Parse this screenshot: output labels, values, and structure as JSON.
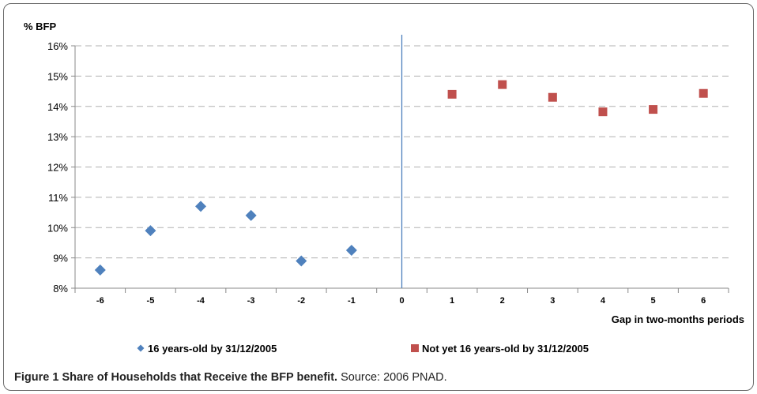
{
  "caption": {
    "label": "Figure 1",
    "title": "Share of Households that Receive the BFP benefit.",
    "source": "Source: 2006 PNAD."
  },
  "chart_data": {
    "type": "scatter",
    "ylabel": "% BFP",
    "xlabel": "Gap in two-months periods",
    "x_categories": [
      "-6",
      "-5",
      "-4",
      "-3",
      "-2",
      "-1",
      "0",
      "1",
      "2",
      "3",
      "4",
      "5",
      "6"
    ],
    "y_ticks": [
      "8%",
      "9%",
      "10%",
      "11%",
      "12%",
      "13%",
      "14%",
      "15%",
      "16%"
    ],
    "ylim": [
      8,
      16
    ],
    "grid": "horizontal-dashed",
    "cutoff_line_x": 0,
    "legend_position": "bottom",
    "series": [
      {
        "name": "16 years-old by 31/12/2005",
        "marker": "diamond",
        "color": "#4f81bd",
        "x": [
          -6,
          -5,
          -4,
          -3,
          -2,
          -1
        ],
        "y": [
          8.6,
          9.9,
          10.7,
          10.4,
          8.9,
          9.25
        ]
      },
      {
        "name": "Not yet 16 years-old by 31/12/2005",
        "marker": "square",
        "color": "#c0504d",
        "x": [
          1,
          2,
          3,
          4,
          5,
          6
        ],
        "y": [
          14.4,
          14.72,
          14.3,
          13.82,
          13.9,
          14.43
        ]
      }
    ],
    "cutoff_color": "#4f81bd"
  }
}
